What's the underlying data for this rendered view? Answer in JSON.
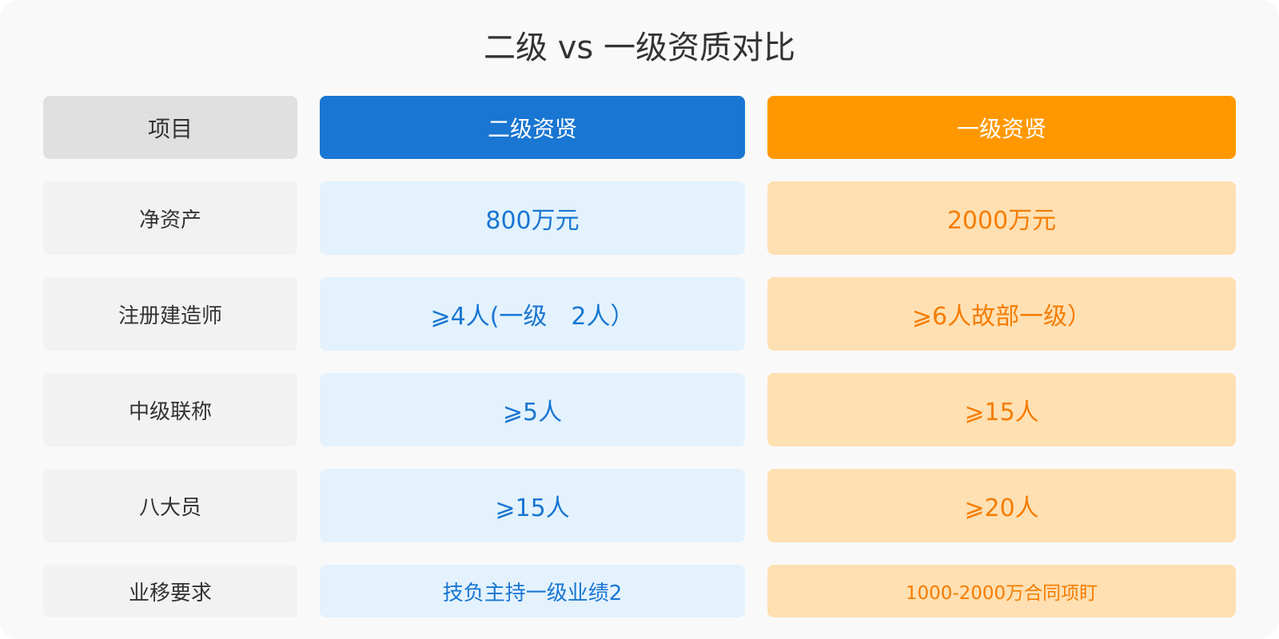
{
  "title": "二级 vs 一级资质对比",
  "table": {
    "header": [
      "项目",
      "二级资贤",
      "一级资贤"
    ],
    "rows": [
      [
        "净资产",
        "800万元",
        "2000万元"
      ],
      [
        "注册建造师",
        "⩾4人(一级　2人）",
        "⩾6人故部一级）"
      ],
      [
        "中级联称",
        "⩾5人",
        "⩾15人"
      ],
      [
        "八大员",
        "⩾15人",
        "⩾20人"
      ],
      [
        "业移要求",
        "技负主持一级业绩2",
        "1000-2000万合同项盯"
      ]
    ]
  }
}
